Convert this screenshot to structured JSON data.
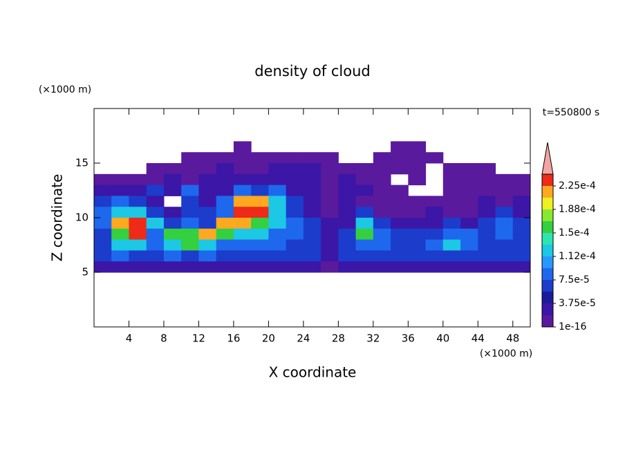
{
  "chart_data": {
    "type": "contour",
    "title": "density of cloud",
    "x_label": "X coordinate",
    "y_label": "Z coordinate",
    "x_unit": "(×1000 m)",
    "y_unit": "(×1000 m)",
    "annotation": "t=550800 s",
    "xlim": [
      0,
      50
    ],
    "ylim": [
      0,
      20
    ],
    "xticks": [
      4,
      8,
      12,
      16,
      20,
      24,
      28,
      32,
      36,
      40,
      44,
      48
    ],
    "yticks": [
      5,
      10,
      15
    ],
    "x": [
      1,
      3,
      5,
      7,
      9,
      11,
      13,
      15,
      17,
      19,
      21,
      23,
      25,
      27,
      29,
      31,
      33,
      35,
      37,
      39,
      41,
      43,
      45,
      47,
      49
    ],
    "y": [
      16.5,
      15.5,
      14.5,
      13.5,
      12.5,
      11.5,
      10.5,
      9.5,
      8.5,
      7.5,
      6.5,
      5.5
    ],
    "values": [
      [
        null,
        null,
        null,
        null,
        null,
        null,
        null,
        null,
        1e-05,
        null,
        null,
        null,
        null,
        null,
        null,
        null,
        null,
        1e-05,
        1e-05,
        null,
        null,
        null,
        null,
        null,
        null
      ],
      [
        null,
        null,
        null,
        null,
        null,
        1e-05,
        1e-05,
        1e-05,
        1e-05,
        1e-05,
        1e-05,
        1e-05,
        1e-05,
        1e-05,
        null,
        null,
        1e-05,
        1e-05,
        1e-05,
        1e-05,
        null,
        null,
        null,
        null,
        null
      ],
      [
        null,
        null,
        null,
        1e-05,
        1e-05,
        1e-05,
        1e-05,
        3e-05,
        1e-05,
        1e-05,
        3e-05,
        3e-05,
        3e-05,
        1e-05,
        1e-05,
        1e-05,
        1e-05,
        1e-05,
        1e-05,
        null,
        1e-05,
        1e-05,
        1e-05,
        null,
        null
      ],
      [
        1e-05,
        1e-05,
        1e-05,
        1e-05,
        3e-05,
        1e-05,
        3e-05,
        3e-05,
        3e-05,
        3e-05,
        3e-05,
        3e-05,
        3e-05,
        1e-05,
        3e-05,
        1e-05,
        1e-05,
        null,
        1e-05,
        null,
        1e-05,
        1e-05,
        1e-05,
        1e-05,
        1e-05
      ],
      [
        3e-05,
        3e-05,
        3e-05,
        6e-05,
        3e-05,
        9e-05,
        3e-05,
        3e-05,
        9e-05,
        6e-05,
        9e-05,
        3e-05,
        3e-05,
        1e-05,
        3e-05,
        3e-05,
        1e-05,
        1e-05,
        null,
        null,
        1e-05,
        1e-05,
        1e-05,
        1e-05,
        1e-05
      ],
      [
        6e-05,
        9e-05,
        6e-05,
        3e-05,
        null,
        6e-05,
        3e-05,
        9e-05,
        0.00021,
        0.00021,
        0.00012,
        6e-05,
        3e-05,
        1e-05,
        3e-05,
        1e-05,
        1e-05,
        1e-05,
        1e-05,
        1e-05,
        1e-05,
        1e-05,
        3e-05,
        1e-05,
        3e-05
      ],
      [
        9e-05,
        0.00012,
        0.00012,
        6e-05,
        3e-05,
        6e-05,
        6e-05,
        9e-05,
        0.00023,
        0.00023,
        0.00012,
        6e-05,
        3e-05,
        1e-05,
        3e-05,
        6e-05,
        1e-05,
        1e-05,
        1e-05,
        3e-05,
        1e-05,
        1e-05,
        3e-05,
        6e-05,
        3e-05
      ],
      [
        9e-05,
        0.00021,
        0.00023,
        0.00012,
        6e-05,
        9e-05,
        6e-05,
        0.00021,
        0.00021,
        0.00016,
        0.00012,
        9e-05,
        6e-05,
        3e-05,
        3e-05,
        0.00012,
        6e-05,
        3e-05,
        3e-05,
        3e-05,
        6e-05,
        3e-05,
        6e-05,
        9e-05,
        6e-05
      ],
      [
        6e-05,
        0.00016,
        0.00023,
        9e-05,
        0.00016,
        0.00016,
        0.00021,
        0.00016,
        0.00012,
        0.00012,
        9e-05,
        9e-05,
        6e-05,
        3e-05,
        6e-05,
        0.00016,
        9e-05,
        6e-05,
        6e-05,
        6e-05,
        9e-05,
        9e-05,
        6e-05,
        9e-05,
        6e-05
      ],
      [
        6e-05,
        0.00012,
        0.00012,
        9e-05,
        0.00012,
        0.00016,
        0.00012,
        9e-05,
        9e-05,
        9e-05,
        9e-05,
        6e-05,
        6e-05,
        3e-05,
        6e-05,
        9e-05,
        9e-05,
        6e-05,
        6e-05,
        9e-05,
        0.00012,
        9e-05,
        6e-05,
        6e-05,
        6e-05
      ],
      [
        6e-05,
        9e-05,
        6e-05,
        6e-05,
        9e-05,
        6e-05,
        9e-05,
        6e-05,
        6e-05,
        6e-05,
        6e-05,
        6e-05,
        6e-05,
        3e-05,
        6e-05,
        6e-05,
        6e-05,
        6e-05,
        6e-05,
        6e-05,
        6e-05,
        6e-05,
        6e-05,
        6e-05,
        6e-05
      ],
      [
        3e-05,
        3e-05,
        3e-05,
        3e-05,
        3e-05,
        3e-05,
        3e-05,
        3e-05,
        3e-05,
        3e-05,
        3e-05,
        3e-05,
        3e-05,
        1e-05,
        3e-05,
        3e-05,
        3e-05,
        3e-05,
        3e-05,
        3e-05,
        3e-05,
        3e-05,
        3e-05,
        3e-05,
        3e-05
      ]
    ],
    "levels": [
      1e-16,
      1.875e-05,
      3.75e-05,
      5.625e-05,
      7.5e-05,
      9.375e-05,
      0.0001125,
      0.00013125,
      0.00015,
      0.00016875,
      0.0001875,
      0.00020625,
      0.000225,
      0.00024375
    ],
    "colors": [
      "#5a1a9e",
      "#3c16a6",
      "#1c1c98",
      "#1c3ccc",
      "#1e68ee",
      "#2a98ff",
      "#1cc8e4",
      "#2ce6b0",
      "#34d040",
      "#88e830",
      "#eef020",
      "#ffa820",
      "#ee2a18"
    ],
    "over_color": "#f4a4a4",
    "colorbar_ticks": [
      {
        "value": 1e-16,
        "label": "1e-16"
      },
      {
        "value": 3.75e-05,
        "label": "3.75e-5"
      },
      {
        "value": 7.5e-05,
        "label": "7.5e-5"
      },
      {
        "value": 0.0001125,
        "label": "1.12e-4"
      },
      {
        "value": 0.00015,
        "label": "1.5e-4"
      },
      {
        "value": 0.0001875,
        "label": "1.88e-4"
      },
      {
        "value": 0.000225,
        "label": "2.25e-4"
      }
    ]
  }
}
